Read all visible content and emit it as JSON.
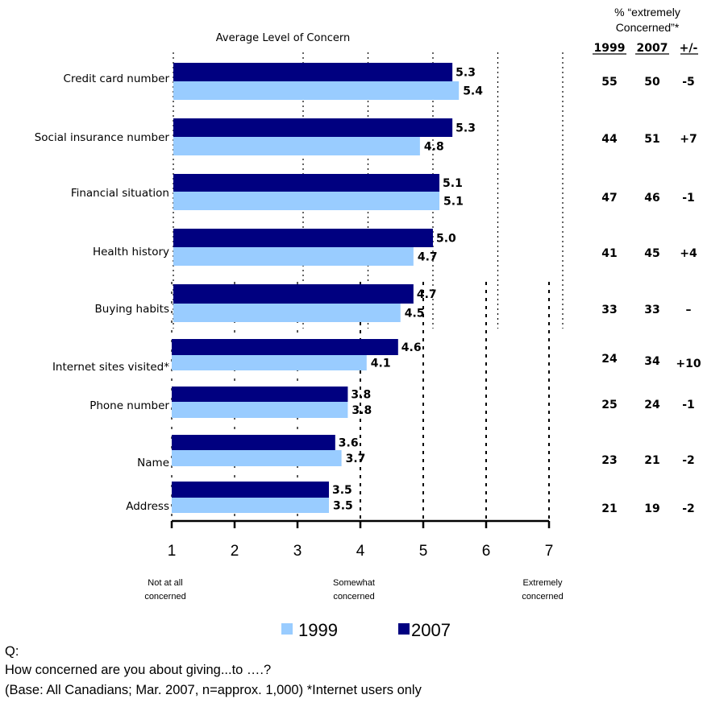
{
  "chart_data": {
    "type": "bar",
    "orientation": "horizontal",
    "title": "Average Level of Concern",
    "categories": [
      "Credit card number",
      "Social insurance number",
      "Financial situation",
      "Health history",
      "Buying habits",
      "Internet sites visited*",
      "Phone number",
      "Name",
      "Address"
    ],
    "series": [
      {
        "name": "2007",
        "color": "#000080",
        "values": [
          5.3,
          5.3,
          5.1,
          5.0,
          4.7,
          4.6,
          3.8,
          3.6,
          3.5
        ],
        "labels": [
          "5.3",
          "5.3",
          "5.1",
          "5.0",
          "4.7",
          "4.6",
          "3.8",
          "3.6",
          "3.5"
        ]
      },
      {
        "name": "1999",
        "color": "#99CCFF",
        "values": [
          5.4,
          4.8,
          5.1,
          4.7,
          4.5,
          4.1,
          3.8,
          3.7,
          3.5
        ],
        "labels": [
          "5.4",
          "4.8",
          "5.1",
          "4.7",
          "4.5",
          "4.1",
          "3.8",
          "3.7",
          "3.5"
        ]
      }
    ],
    "xlim": [
      1,
      7
    ],
    "xticks": [
      "1",
      "2",
      "3",
      "4",
      "5",
      "6",
      "7"
    ],
    "scale_labels": [
      {
        "at": 1,
        "line1": "Not at all",
        "line2": "concerned"
      },
      {
        "at": 4,
        "line1": "Somewhat",
        "line2": "concerned"
      },
      {
        "at": 7,
        "line1": "Extremely",
        "line2": "concerned"
      }
    ],
    "grid": "dotted vertical",
    "legend": {
      "position": "bottom",
      "entries": [
        "1999",
        "2007"
      ]
    },
    "table": {
      "header_line1": "% “extremely",
      "header_line2": "Concerned”*",
      "columns": [
        "1999",
        "2007",
        "+/-"
      ],
      "rows": [
        [
          "55",
          "50",
          "-5"
        ],
        [
          "44",
          "51",
          "+7"
        ],
        [
          "47",
          "46",
          "-1"
        ],
        [
          "41",
          "45",
          "+4"
        ],
        [
          "33",
          "33",
          "–"
        ],
        [
          "24",
          "34",
          "+10"
        ],
        [
          "25",
          "24",
          "-1"
        ],
        [
          "23",
          "21",
          "-2"
        ],
        [
          "21",
          "19",
          "-2"
        ]
      ]
    }
  },
  "footer": {
    "q_label": "Q:",
    "question": "How concerned are you about giving...to ….?",
    "base": "(Base: All Canadians; Mar. 2007, n=approx. 1,000) *Internet users only"
  }
}
